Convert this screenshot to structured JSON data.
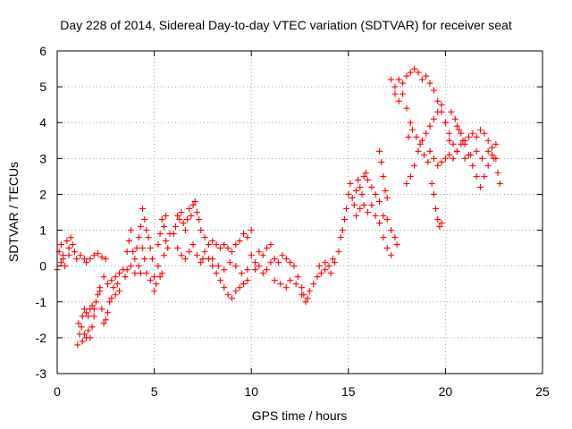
{
  "chart_data": {
    "type": "scatter",
    "title": "Day 228 of 2014, Sidereal Day-to-day VTEC variation (SDTVAR) for receiver seat",
    "xlabel": "GPS time / hours",
    "ylabel": "SDTVAR / TECUs",
    "xlim": [
      0,
      25
    ],
    "ylim": [
      -3,
      6
    ],
    "xticks": [
      0,
      5,
      10,
      15,
      20,
      25
    ],
    "yticks": [
      -3,
      -2,
      -1,
      0,
      1,
      2,
      3,
      4,
      5,
      6
    ],
    "grid": true,
    "marker": "+",
    "color": "#ff0000",
    "series": [
      {
        "name": "SDTVAR",
        "points": [
          [
            0.0,
            -0.1
          ],
          [
            0.1,
            0.4
          ],
          [
            0.2,
            0.6
          ],
          [
            0.3,
            0.3
          ],
          [
            0.5,
            0.7
          ],
          [
            0.6,
            0.5
          ],
          [
            0.7,
            0.8
          ],
          [
            0.8,
            0.6
          ],
          [
            0.9,
            0.4
          ],
          [
            1.0,
            0.2
          ],
          [
            1.2,
            0.3
          ],
          [
            1.4,
            0.2
          ],
          [
            1.5,
            0.1
          ],
          [
            1.7,
            0.2
          ],
          [
            1.9,
            0.3
          ],
          [
            2.1,
            0.35
          ],
          [
            2.3,
            0.25
          ],
          [
            2.5,
            0.2
          ],
          [
            0.2,
            0.1
          ],
          [
            0.3,
            0.2
          ],
          [
            0.4,
            0.0
          ],
          [
            0.6,
            0.3
          ],
          [
            1.05,
            -2.2
          ],
          [
            1.1,
            -1.6
          ],
          [
            1.15,
            -1.9
          ],
          [
            1.25,
            -1.7
          ],
          [
            1.3,
            -2.1
          ],
          [
            1.4,
            -1.9
          ],
          [
            1.5,
            -2.0
          ],
          [
            1.6,
            -1.8
          ],
          [
            1.7,
            -2.0
          ],
          [
            1.8,
            -1.7
          ],
          [
            1.9,
            -1.4
          ],
          [
            1.3,
            -1.4
          ],
          [
            1.4,
            -1.2
          ],
          [
            1.5,
            -1.3
          ],
          [
            1.6,
            -1.4
          ],
          [
            1.7,
            -1.2
          ],
          [
            1.8,
            -1.1
          ],
          [
            1.9,
            -1.2
          ],
          [
            2.0,
            -1.0
          ],
          [
            2.1,
            -0.8
          ],
          [
            2.2,
            -0.7
          ],
          [
            2.3,
            -1.2
          ],
          [
            2.4,
            -1.6
          ],
          [
            2.5,
            -1.5
          ],
          [
            2.6,
            -1.3
          ],
          [
            2.7,
            -1.0
          ],
          [
            2.8,
            -0.9
          ],
          [
            2.9,
            -0.6
          ],
          [
            3.0,
            -0.8
          ],
          [
            3.1,
            -0.5
          ],
          [
            3.2,
            -0.7
          ],
          [
            2.2,
            -0.6
          ],
          [
            2.4,
            -0.3
          ],
          [
            2.6,
            -0.5
          ],
          [
            2.8,
            -0.4
          ],
          [
            3.0,
            -0.3
          ],
          [
            3.2,
            -0.2
          ],
          [
            3.4,
            -0.1
          ],
          [
            3.5,
            -0.3
          ],
          [
            3.6,
            -0.1
          ],
          [
            3.8,
            0.0
          ],
          [
            4.0,
            0.2
          ],
          [
            4.1,
            0.5
          ],
          [
            4.2,
            0.8
          ],
          [
            4.3,
            1.1
          ],
          [
            3.8,
            1.0
          ],
          [
            3.7,
            0.7
          ],
          [
            3.6,
            0.4
          ],
          [
            3.9,
            0.4
          ],
          [
            4.0,
            -0.2
          ],
          [
            4.2,
            0.0
          ],
          [
            4.3,
            -0.2
          ],
          [
            4.4,
            1.6
          ],
          [
            4.5,
            1.3
          ],
          [
            4.6,
            1.0
          ],
          [
            4.7,
            0.8
          ],
          [
            4.8,
            0.5
          ],
          [
            4.9,
            0.2
          ],
          [
            5.0,
            -0.3
          ],
          [
            5.1,
            -0.5
          ],
          [
            5.0,
            -0.7
          ],
          [
            4.8,
            -0.4
          ],
          [
            4.6,
            -0.2
          ],
          [
            4.5,
            0.2
          ],
          [
            4.4,
            0.5
          ],
          [
            5.2,
            0.0
          ],
          [
            5.3,
            -0.3
          ],
          [
            5.4,
            -0.2
          ],
          [
            5.5,
            0.3
          ],
          [
            5.6,
            0.7
          ],
          [
            5.7,
            0.5
          ],
          [
            5.8,
            0.9
          ],
          [
            5.5,
            1.1
          ],
          [
            5.4,
            1.3
          ],
          [
            5.6,
            1.4
          ],
          [
            5.3,
            0.9
          ],
          [
            5.2,
            0.6
          ],
          [
            6.0,
            0.9
          ],
          [
            6.1,
            1.1
          ],
          [
            6.2,
            1.4
          ],
          [
            6.3,
            1.3
          ],
          [
            6.4,
            1.5
          ],
          [
            6.5,
            1.2
          ],
          [
            6.6,
            1.0
          ],
          [
            6.7,
            1.3
          ],
          [
            6.8,
            1.6
          ],
          [
            6.9,
            1.4
          ],
          [
            7.0,
            1.7
          ],
          [
            7.1,
            1.8
          ],
          [
            7.2,
            1.5
          ],
          [
            7.3,
            1.3
          ],
          [
            6.2,
            0.5
          ],
          [
            6.4,
            0.3
          ],
          [
            6.6,
            0.2
          ],
          [
            6.8,
            0.4
          ],
          [
            7.0,
            0.6
          ],
          [
            7.2,
            0.3
          ],
          [
            7.4,
            0.1
          ],
          [
            7.5,
            0.2
          ],
          [
            7.6,
            0.4
          ],
          [
            7.8,
            0.2
          ],
          [
            8.0,
            0.0
          ],
          [
            8.2,
            -0.2
          ],
          [
            8.4,
            -0.4
          ],
          [
            8.6,
            -0.6
          ],
          [
            8.8,
            -0.8
          ],
          [
            9.0,
            -0.9
          ],
          [
            9.2,
            -0.7
          ],
          [
            9.4,
            -0.6
          ],
          [
            9.6,
            -0.5
          ],
          [
            9.8,
            -0.4
          ],
          [
            7.4,
            1.0
          ],
          [
            7.6,
            0.8
          ],
          [
            7.8,
            0.6
          ],
          [
            8.0,
            0.7
          ],
          [
            8.2,
            0.6
          ],
          [
            8.4,
            0.5
          ],
          [
            8.6,
            0.6
          ],
          [
            8.8,
            0.5
          ],
          [
            9.0,
            0.4
          ],
          [
            9.2,
            0.6
          ],
          [
            9.4,
            0.7
          ],
          [
            9.6,
            0.9
          ],
          [
            9.8,
            0.8
          ],
          [
            10.0,
            1.0
          ],
          [
            8.0,
            0.2
          ],
          [
            8.3,
            0.0
          ],
          [
            8.6,
            -0.1
          ],
          [
            8.9,
            0.1
          ],
          [
            9.2,
            0.0
          ],
          [
            9.5,
            -0.2
          ],
          [
            9.8,
            -0.1
          ],
          [
            10.0,
            0.3
          ],
          [
            10.2,
            0.1
          ],
          [
            10.4,
            0.4
          ],
          [
            10.6,
            0.3
          ],
          [
            10.8,
            0.5
          ],
          [
            11.0,
            0.6
          ],
          [
            10.2,
            -0.1
          ],
          [
            10.4,
            0.0
          ],
          [
            10.6,
            -0.2
          ],
          [
            10.8,
            -0.1
          ],
          [
            11.0,
            0.1
          ],
          [
            11.2,
            0.2
          ],
          [
            11.4,
            0.1
          ],
          [
            11.6,
            0.3
          ],
          [
            11.8,
            0.2
          ],
          [
            12.0,
            0.1
          ],
          [
            12.2,
            0.0
          ],
          [
            12.4,
            -0.3
          ],
          [
            12.6,
            -0.6
          ],
          [
            12.7,
            -0.8
          ],
          [
            12.8,
            -1.0
          ],
          [
            12.9,
            -0.9
          ],
          [
            13.0,
            -0.7
          ],
          [
            11.2,
            -0.4
          ],
          [
            11.5,
            -0.5
          ],
          [
            11.8,
            -0.6
          ],
          [
            12.0,
            -0.4
          ],
          [
            12.3,
            -0.5
          ],
          [
            12.6,
            -0.8
          ],
          [
            13.2,
            -0.5
          ],
          [
            13.4,
            -0.3
          ],
          [
            13.6,
            -0.2
          ],
          [
            13.8,
            -0.1
          ],
          [
            14.0,
            0.0
          ],
          [
            14.2,
            0.2
          ],
          [
            13.5,
            0.0
          ],
          [
            13.8,
            0.1
          ],
          [
            14.1,
            -0.2
          ],
          [
            14.3,
            0.1
          ],
          [
            14.5,
            0.4
          ],
          [
            14.6,
            0.8
          ],
          [
            14.7,
            1.0
          ],
          [
            14.8,
            1.3
          ],
          [
            14.9,
            1.6
          ],
          [
            15.0,
            2.0
          ],
          [
            15.1,
            2.3
          ],
          [
            15.2,
            1.9
          ],
          [
            15.3,
            1.7
          ],
          [
            15.4,
            2.1
          ],
          [
            15.5,
            2.4
          ],
          [
            15.6,
            2.2
          ],
          [
            15.7,
            2.0
          ],
          [
            15.8,
            2.5
          ],
          [
            15.9,
            2.6
          ],
          [
            16.0,
            2.4
          ],
          [
            16.2,
            2.2
          ],
          [
            16.4,
            2.0
          ],
          [
            16.6,
            1.8
          ],
          [
            15.4,
            1.4
          ],
          [
            15.6,
            1.6
          ],
          [
            15.8,
            1.7
          ],
          [
            16.0,
            1.5
          ],
          [
            16.2,
            1.7
          ],
          [
            16.4,
            1.4
          ],
          [
            16.6,
            1.2
          ],
          [
            16.8,
            1.4
          ],
          [
            17.0,
            1.3
          ],
          [
            17.2,
            1.0
          ],
          [
            17.4,
            0.8
          ],
          [
            17.5,
            0.6
          ],
          [
            16.8,
            0.8
          ],
          [
            17.0,
            0.5
          ],
          [
            17.2,
            0.3
          ],
          [
            16.6,
            3.2
          ],
          [
            16.7,
            2.9
          ],
          [
            16.8,
            2.5
          ],
          [
            16.9,
            2.1
          ],
          [
            17.0,
            1.9
          ],
          [
            17.2,
            5.2
          ],
          [
            17.4,
            5.0
          ],
          [
            17.6,
            5.2
          ],
          [
            17.8,
            5.1
          ],
          [
            18.0,
            5.3
          ],
          [
            18.2,
            5.4
          ],
          [
            18.4,
            5.5
          ],
          [
            18.6,
            5.4
          ],
          [
            18.8,
            5.2
          ],
          [
            19.0,
            5.3
          ],
          [
            19.2,
            5.1
          ],
          [
            19.4,
            4.9
          ],
          [
            19.6,
            4.6
          ],
          [
            19.8,
            4.3
          ],
          [
            20.0,
            4.0
          ],
          [
            20.2,
            3.7
          ],
          [
            20.4,
            3.4
          ],
          [
            20.6,
            3.2
          ],
          [
            17.4,
            4.8
          ],
          [
            17.6,
            4.6
          ],
          [
            17.8,
            4.8
          ],
          [
            18.0,
            4.4
          ],
          [
            18.2,
            4.0
          ],
          [
            18.1,
            3.6
          ],
          [
            18.3,
            3.8
          ],
          [
            18.5,
            3.6
          ],
          [
            18.7,
            3.4
          ],
          [
            18.9,
            3.1
          ],
          [
            19.1,
            2.9
          ],
          [
            18.0,
            2.3
          ],
          [
            18.2,
            2.5
          ],
          [
            18.4,
            2.8
          ],
          [
            18.6,
            3.2
          ],
          [
            18.8,
            3.5
          ],
          [
            19.0,
            3.7
          ],
          [
            19.2,
            3.9
          ],
          [
            19.4,
            4.1
          ],
          [
            19.6,
            4.3
          ],
          [
            19.8,
            4.5
          ],
          [
            20.0,
            4.0
          ],
          [
            20.2,
            3.5
          ],
          [
            19.3,
            2.3
          ],
          [
            19.4,
            2.0
          ],
          [
            19.5,
            1.6
          ],
          [
            19.6,
            1.3
          ],
          [
            19.7,
            1.1
          ],
          [
            19.8,
            1.2
          ],
          [
            19.2,
            3.2
          ],
          [
            19.4,
            3.0
          ],
          [
            19.6,
            2.8
          ],
          [
            19.8,
            2.9
          ],
          [
            20.0,
            3.0
          ],
          [
            20.2,
            3.1
          ],
          [
            20.4,
            3.0
          ],
          [
            20.6,
            3.2
          ],
          [
            20.8,
            3.4
          ],
          [
            21.0,
            3.5
          ],
          [
            21.2,
            3.6
          ],
          [
            21.4,
            3.7
          ],
          [
            21.6,
            3.6
          ],
          [
            21.8,
            3.8
          ],
          [
            22.0,
            3.7
          ],
          [
            22.2,
            3.5
          ],
          [
            22.4,
            3.3
          ],
          [
            22.6,
            3.0
          ],
          [
            22.7,
            2.6
          ],
          [
            22.8,
            2.3
          ],
          [
            20.6,
            3.9
          ],
          [
            20.8,
            3.7
          ],
          [
            21.0,
            3.4
          ],
          [
            21.2,
            3.1
          ],
          [
            21.4,
            2.8
          ],
          [
            21.6,
            2.5
          ],
          [
            21.8,
            2.2
          ],
          [
            22.0,
            2.5
          ],
          [
            22.2,
            2.8
          ],
          [
            22.4,
            3.1
          ],
          [
            22.6,
            3.4
          ],
          [
            21.0,
            3.0
          ],
          [
            21.3,
            3.1
          ],
          [
            21.6,
            3.2
          ],
          [
            21.9,
            3.0
          ],
          [
            22.2,
            3.2
          ],
          [
            22.5,
            3.0
          ],
          [
            20.3,
            4.3
          ],
          [
            20.5,
            4.1
          ],
          [
            20.7,
            3.8
          ],
          [
            20.9,
            3.5
          ]
        ]
      }
    ]
  }
}
